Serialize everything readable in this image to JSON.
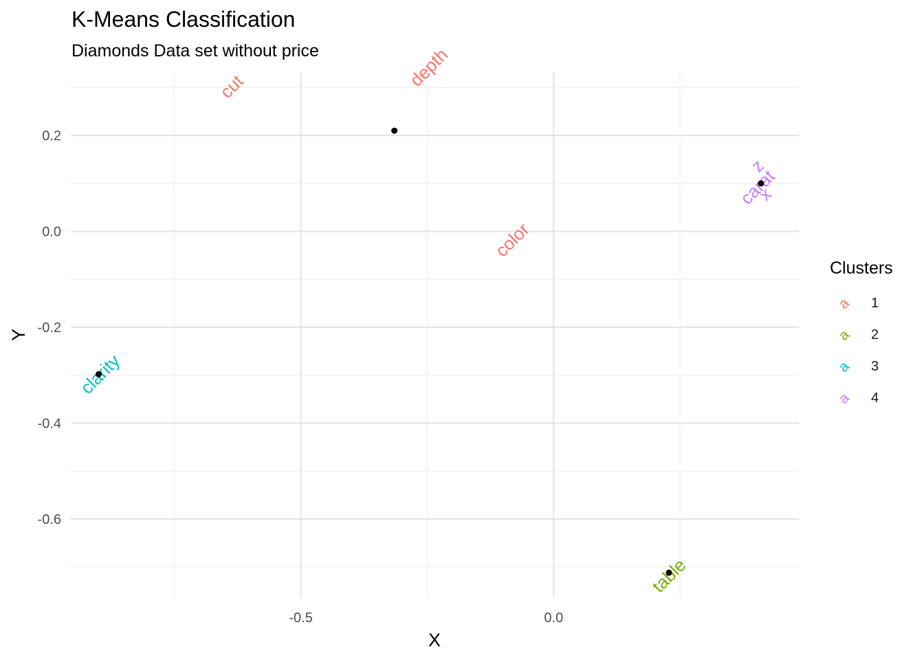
{
  "chart_data": {
    "type": "scatter",
    "title": "K-Means Classification",
    "subtitle": "Diamonds Data set without price",
    "xlabel": "X",
    "ylabel": "Y",
    "xlim": [
      -0.955,
      0.485
    ],
    "ylim": [
      -0.765,
      0.332
    ],
    "x_ticks": [
      {
        "value": -0.5,
        "label": "-0.5"
      },
      {
        "value": 0.0,
        "label": "0.0"
      }
    ],
    "x_minor_ticks": [
      -0.75,
      -0.25,
      0.25
    ],
    "y_ticks": [
      {
        "value": 0.2,
        "label": "0.2"
      },
      {
        "value": 0.0,
        "label": "0.0"
      },
      {
        "value": -0.2,
        "label": "-0.2"
      },
      {
        "value": -0.4,
        "label": "-0.4"
      },
      {
        "value": -0.6,
        "label": "-0.6"
      }
    ],
    "y_minor_ticks": [
      0.3,
      0.1,
      -0.1,
      -0.3,
      -0.5,
      -0.7
    ],
    "grid": true,
    "legend": {
      "title": "Clusters",
      "placement": "right",
      "key_glyph": "a",
      "items": [
        {
          "label": "1",
          "color": "#F8766D"
        },
        {
          "label": "2",
          "color": "#7CAE00"
        },
        {
          "label": "3",
          "color": "#00BFC4"
        },
        {
          "label": "4",
          "color": "#C77CFF"
        }
      ]
    },
    "labels": [
      {
        "text": "cut",
        "x": -0.635,
        "y": 0.3,
        "cluster": 1
      },
      {
        "text": "depth",
        "x": -0.245,
        "y": 0.34,
        "cluster": 1
      },
      {
        "text": "color",
        "x": -0.08,
        "y": -0.02,
        "cluster": 1
      },
      {
        "text": "table",
        "x": 0.23,
        "y": -0.72,
        "cluster": 2
      },
      {
        "text": "clarity",
        "x": -0.895,
        "y": -0.3,
        "cluster": 3
      },
      {
        "text": "carat",
        "x": 0.405,
        "y": 0.09,
        "cluster": 4
      },
      {
        "text": "x",
        "x": 0.42,
        "y": 0.075,
        "cluster": 4
      },
      {
        "text": "z",
        "x": 0.405,
        "y": 0.135,
        "cluster": 4
      }
    ],
    "centers": [
      {
        "x": -0.315,
        "y": 0.21
      },
      {
        "x": 0.41,
        "y": 0.1
      },
      {
        "x": -0.9,
        "y": -0.298
      },
      {
        "x": 0.228,
        "y": -0.712
      }
    ]
  }
}
